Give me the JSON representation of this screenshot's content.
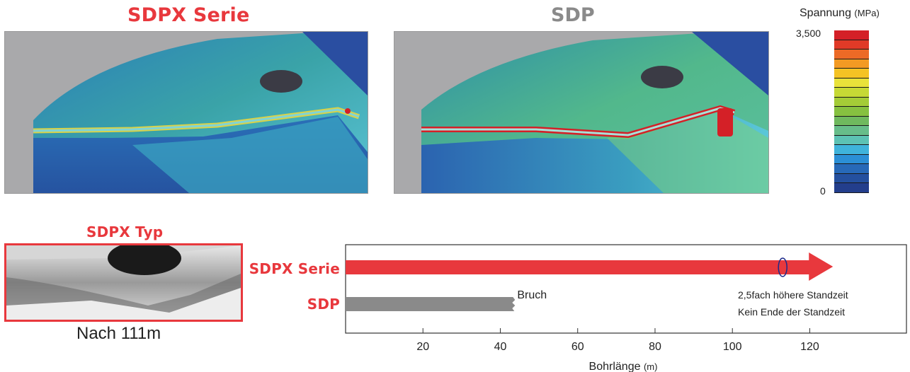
{
  "panels": {
    "sdpx_title": "SDPX Serie",
    "sdp_title": "SDP"
  },
  "legend": {
    "title": "Spannung",
    "unit": "(MPa)",
    "max_label": "3,500",
    "min_label": "0",
    "colors": [
      "#d42027",
      "#e03a27",
      "#ec6a26",
      "#f39a23",
      "#f5c324",
      "#e9e23a",
      "#c6d935",
      "#a4cc37",
      "#86c140",
      "#6fb95e",
      "#67bd8a",
      "#5cc2b4",
      "#3fb3db",
      "#2b8fd6",
      "#2769b8",
      "#24509f",
      "#233e8c"
    ]
  },
  "photo": {
    "caption_top": "SDPX Typ",
    "caption_bottom": "Nach 111m"
  },
  "chart_data": {
    "type": "bar",
    "orientation": "horizontal",
    "categories": [
      "SDPX Serie",
      "SDP"
    ],
    "values": [
      126,
      44
    ],
    "colors": [
      "#e8383d",
      "#8a8a8a"
    ],
    "xlabel": "Bohrlänge",
    "xunit": "(m)",
    "xlim": [
      0,
      145
    ],
    "xticks": [
      20,
      40,
      60,
      80,
      100,
      120
    ],
    "annotations": {
      "sdp_end": "Bruch",
      "sdpx_line1": "2,5fach höhere Standzeit",
      "sdpx_line2": "Kein Ende der Standzeit"
    },
    "marker_x": 113
  }
}
